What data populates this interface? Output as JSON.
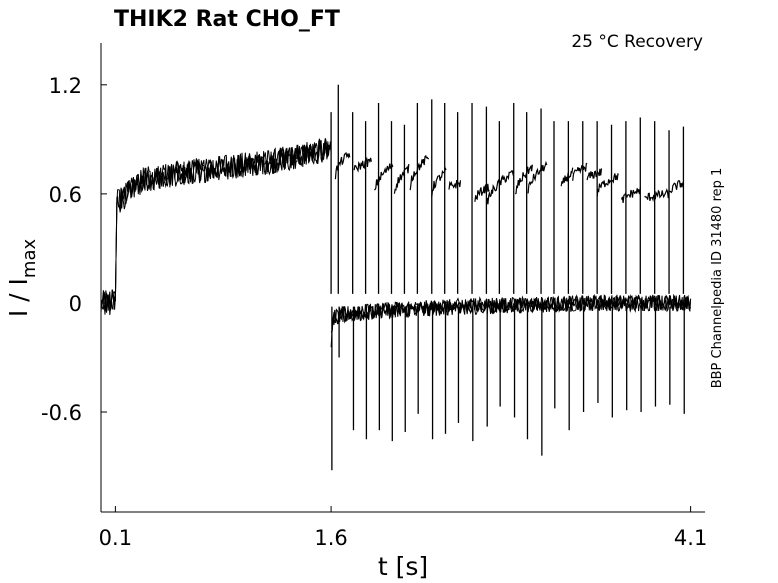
{
  "chart_data": {
    "type": "line",
    "title": "THIK2  Rat  CHO_FT",
    "condition": "25 °C  Recovery",
    "side_label": "BBP Channelpedia ID 31480 rep 1",
    "xlabel": "t [s]",
    "ylabel_main": "I / I",
    "ylabel_sub": "max",
    "xlim": [
      0.0,
      4.2
    ],
    "ylim": [
      -1.15,
      1.43
    ],
    "x_ticks": [
      0.1,
      1.6,
      4.1
    ],
    "x_tick_labels": [
      "0.1",
      "1.6",
      "4.1"
    ],
    "y_ticks": [
      1.2,
      0.6,
      0,
      -0.6
    ],
    "y_tick_labels": [
      "1.2",
      "0.6",
      "0",
      "-0.6"
    ],
    "grid": false,
    "line_color": "#000000",
    "series": [
      {
        "x": [
          0.0,
          0.05,
          0.1,
          0.11,
          0.3,
          0.6,
          0.9,
          1.2,
          1.45,
          1.6
        ],
        "y": [
          0.0,
          0.0,
          0.01,
          0.55,
          0.68,
          0.72,
          0.75,
          0.78,
          0.82,
          0.85
        ]
      },
      {
        "x": [
          1.6,
          1.62,
          1.7,
          2.0,
          2.5,
          3.0,
          3.5,
          4.0,
          4.1
        ],
        "y": [
          -0.2,
          -0.08,
          -0.06,
          -0.04,
          -0.02,
          -0.01,
          0.0,
          0.0,
          0.0
        ]
      }
    ],
    "pulse_series": {
      "pulse_times": [
        1.6,
        1.65,
        1.75,
        1.84,
        1.93,
        2.02,
        2.11,
        2.2,
        2.3,
        2.39,
        2.48,
        2.58,
        2.68,
        2.77,
        2.87,
        2.96,
        3.06,
        3.15,
        3.25,
        3.35,
        3.45,
        3.55,
        3.65,
        3.75,
        3.85,
        3.95,
        4.05
      ],
      "up_peaks": [
        1.05,
        1.2,
        1.05,
        1.0,
        1.1,
        1.0,
        0.98,
        1.1,
        1.12,
        1.1,
        1.05,
        1.1,
        1.08,
        1.0,
        1.1,
        1.05,
        1.07,
        1.0,
        1.0,
        1.0,
        1.0,
        0.98,
        1.0,
        1.02,
        1.0,
        0.95,
        0.97
      ],
      "down_peaks": [
        -0.92,
        -0.3,
        -0.7,
        -0.75,
        -0.7,
        -0.76,
        -0.71,
        -0.61,
        -0.75,
        -0.72,
        -0.66,
        -0.76,
        -0.68,
        -0.57,
        -0.63,
        -0.75,
        -0.84,
        -0.58,
        -0.7,
        -0.6,
        -0.55,
        -0.63,
        -0.59,
        -0.6,
        -0.57,
        -0.56,
        -0.61
      ],
      "recovery_segments": [
        {
          "x": [
            1.63,
            1.73
          ],
          "y": [
            0.7,
            0.82
          ]
        },
        {
          "x": [
            1.76,
            1.88
          ],
          "y": [
            0.72,
            0.78
          ]
        },
        {
          "x": [
            1.9,
            2.03
          ],
          "y": [
            0.6,
            0.76
          ]
        },
        {
          "x": [
            2.04,
            2.14
          ],
          "y": [
            0.6,
            0.74
          ]
        },
        {
          "x": [
            2.15,
            2.28
          ],
          "y": [
            0.64,
            0.8
          ]
        },
        {
          "x": [
            2.3,
            2.4
          ],
          "y": [
            0.6,
            0.72
          ]
        },
        {
          "x": [
            2.42,
            2.5
          ],
          "y": [
            0.63,
            0.66
          ]
        },
        {
          "x": [
            2.6,
            2.7
          ],
          "y": [
            0.56,
            0.64
          ]
        },
        {
          "x": [
            2.68,
            2.87
          ],
          "y": [
            0.52,
            0.72
          ]
        },
        {
          "x": [
            2.88,
            3.0
          ],
          "y": [
            0.58,
            0.75
          ]
        },
        {
          "x": [
            2.97,
            3.1
          ],
          "y": [
            0.6,
            0.76
          ]
        },
        {
          "x": [
            3.2,
            3.28
          ],
          "y": [
            0.62,
            0.72
          ]
        },
        {
          "x": [
            3.28,
            3.38
          ],
          "y": [
            0.68,
            0.75
          ]
        },
        {
          "x": [
            3.38,
            3.48
          ],
          "y": [
            0.68,
            0.72
          ]
        },
        {
          "x": [
            3.45,
            3.6
          ],
          "y": [
            0.6,
            0.7
          ]
        },
        {
          "x": [
            3.62,
            3.75
          ],
          "y": [
            0.55,
            0.62
          ]
        },
        {
          "x": [
            3.78,
            3.95
          ],
          "y": [
            0.57,
            0.6
          ]
        },
        {
          "x": [
            3.95,
            4.05
          ],
          "y": [
            0.6,
            0.66
          ]
        }
      ]
    }
  }
}
